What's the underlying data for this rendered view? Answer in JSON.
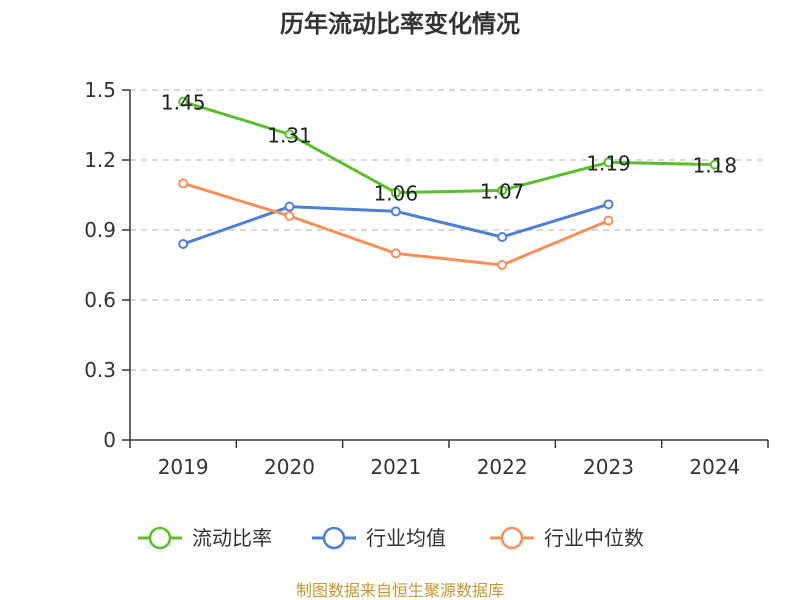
{
  "chart_data": {
    "type": "line",
    "title": "历年流动比率变化情况",
    "xlabel": "",
    "ylabel": "",
    "categories": [
      "2019",
      "2020",
      "2021",
      "2022",
      "2023",
      "2024"
    ],
    "ylim": [
      0,
      1.5
    ],
    "yticks": [
      "0",
      "0.3",
      "0.6",
      "0.9",
      "1.2",
      "1.5"
    ],
    "ytick_values": [
      0,
      0.3,
      0.6,
      0.9,
      1.2,
      1.5
    ],
    "grid": true,
    "legend_position": "bottom",
    "series": [
      {
        "name": "流动比率",
        "color": "#5cbd2d",
        "values": [
          1.45,
          1.31,
          1.06,
          1.07,
          1.19,
          1.18
        ],
        "labels": [
          "1.45",
          "1.31",
          "1.06",
          "1.07",
          "1.19",
          "1.18"
        ]
      },
      {
        "name": "行业均值",
        "color": "#4e7fd8",
        "values": [
          0.84,
          1.0,
          0.98,
          0.87,
          1.01,
          null
        ]
      },
      {
        "name": "行业中位数",
        "color": "#f5905a",
        "values": [
          1.1,
          0.96,
          0.8,
          0.75,
          0.94,
          null
        ]
      }
    ]
  },
  "source_text": "制图数据来自恒生聚源数据库"
}
